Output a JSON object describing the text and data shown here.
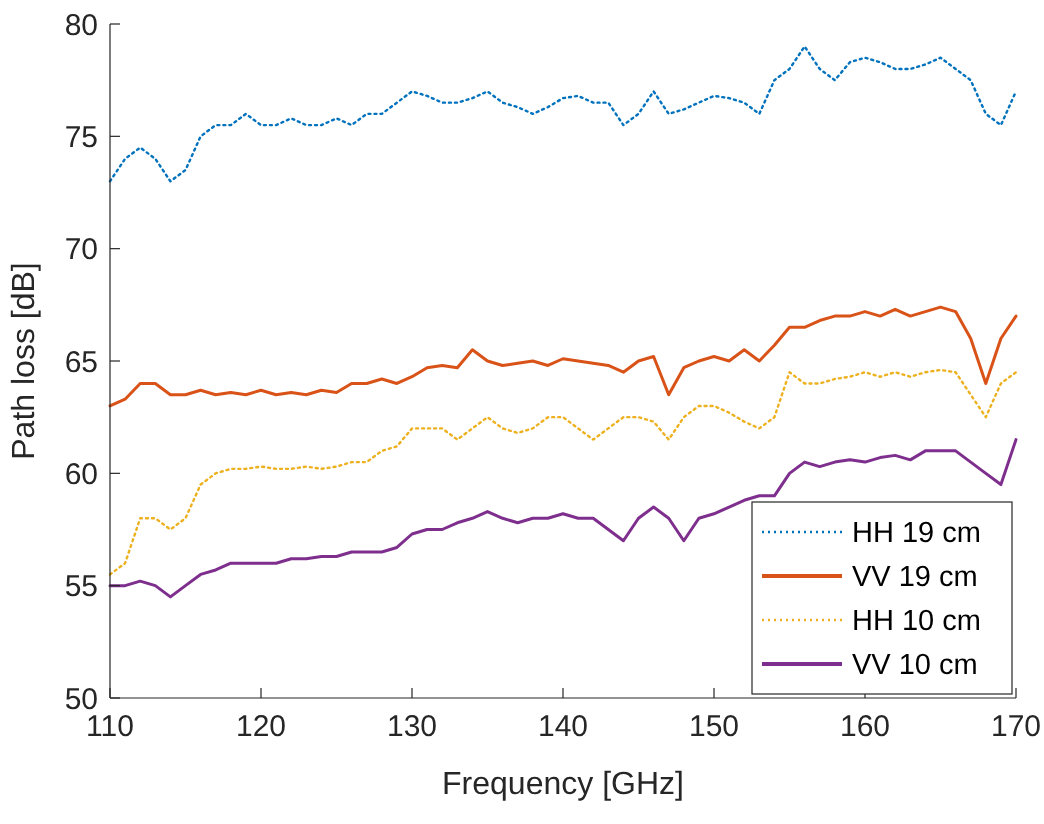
{
  "chart_data": {
    "type": "line",
    "xlabel": "Frequency [GHz]",
    "ylabel": "Path loss [dB]",
    "x": [
      110,
      111,
      112,
      113,
      114,
      115,
      116,
      117,
      118,
      119,
      120,
      121,
      122,
      123,
      124,
      125,
      126,
      127,
      128,
      129,
      130,
      131,
      132,
      133,
      134,
      135,
      136,
      137,
      138,
      139,
      140,
      141,
      142,
      143,
      144,
      145,
      146,
      147,
      148,
      149,
      150,
      151,
      152,
      153,
      154,
      155,
      156,
      157,
      158,
      159,
      160,
      161,
      162,
      163,
      164,
      165,
      166,
      167,
      168,
      169,
      170
    ],
    "xlim": [
      110,
      170
    ],
    "xticks": [
      110,
      120,
      130,
      140,
      150,
      160,
      170
    ],
    "ylim": [
      50,
      80
    ],
    "yticks": [
      50,
      55,
      60,
      65,
      70,
      75,
      80
    ],
    "grid": false,
    "legend": "bottom right",
    "series": [
      {
        "name": "HH 19 cm",
        "color": "#0072bd",
        "line_style": "dotted",
        "values": [
          73,
          74,
          74.5,
          74,
          73,
          73.5,
          75,
          75.5,
          75.5,
          76,
          75.5,
          75.5,
          75.8,
          75.5,
          75.5,
          75.8,
          75.5,
          76,
          76,
          76.5,
          77,
          76.8,
          76.5,
          76.5,
          76.7,
          77,
          76.5,
          76.3,
          76,
          76.3,
          76.7,
          76.8,
          76.5,
          76.5,
          75.5,
          76,
          77,
          76,
          76.2,
          76.5,
          76.8,
          76.7,
          76.5,
          76,
          77.5,
          78,
          79,
          78,
          77.5,
          78.3,
          78.5,
          78.3,
          78,
          78,
          78.2,
          78.5,
          78,
          77.5,
          76,
          75.5,
          77
        ]
      },
      {
        "name": "VV 19 cm",
        "color": "#d95319",
        "line_style": "solid",
        "values": [
          63,
          63.3,
          64,
          64,
          63.5,
          63.5,
          63.7,
          63.5,
          63.6,
          63.5,
          63.7,
          63.5,
          63.6,
          63.5,
          63.7,
          63.6,
          64,
          64,
          64.2,
          64,
          64.3,
          64.7,
          64.8,
          64.7,
          65.5,
          65,
          64.8,
          64.9,
          65,
          64.8,
          65.1,
          65,
          64.9,
          64.8,
          64.5,
          65,
          65.2,
          63.5,
          64.7,
          65,
          65.2,
          65,
          65.5,
          65,
          65.7,
          66.5,
          66.5,
          66.8,
          67,
          67,
          67.2,
          67,
          67.3,
          67,
          67.2,
          67.4,
          67.2,
          66,
          64,
          66,
          67
        ]
      },
      {
        "name": "HH 10 cm",
        "color": "#edb120",
        "line_style": "dotted",
        "values": [
          55.5,
          56,
          58,
          58,
          57.5,
          58,
          59.5,
          60,
          60.2,
          60.2,
          60.3,
          60.2,
          60.2,
          60.3,
          60.2,
          60.3,
          60.5,
          60.5,
          61,
          61.2,
          62,
          62,
          62,
          61.5,
          62,
          62.5,
          62,
          61.8,
          62,
          62.5,
          62.5,
          62,
          61.5,
          62,
          62.5,
          62.5,
          62.3,
          61.5,
          62.5,
          63,
          63,
          62.7,
          62.3,
          62,
          62.5,
          64.5,
          64,
          64,
          64.2,
          64.3,
          64.5,
          64.3,
          64.5,
          64.3,
          64.5,
          64.6,
          64.5,
          63.5,
          62.5,
          64,
          64.5
        ]
      },
      {
        "name": "VV 10 cm",
        "color": "#7e2f8e",
        "line_style": "solid",
        "values": [
          55,
          55,
          55.2,
          55,
          54.5,
          55,
          55.5,
          55.7,
          56,
          56,
          56,
          56,
          56.2,
          56.2,
          56.3,
          56.3,
          56.5,
          56.5,
          56.5,
          56.7,
          57.3,
          57.5,
          57.5,
          57.8,
          58,
          58.3,
          58,
          57.8,
          58,
          58,
          58.2,
          58,
          58,
          57.5,
          57,
          58,
          58.5,
          58,
          57,
          58,
          58.2,
          58.5,
          58.8,
          59,
          59,
          60,
          60.5,
          60.3,
          60.5,
          60.6,
          60.5,
          60.7,
          60.8,
          60.6,
          61,
          61,
          61,
          60.5,
          60,
          59.5,
          61.5
        ]
      }
    ]
  }
}
